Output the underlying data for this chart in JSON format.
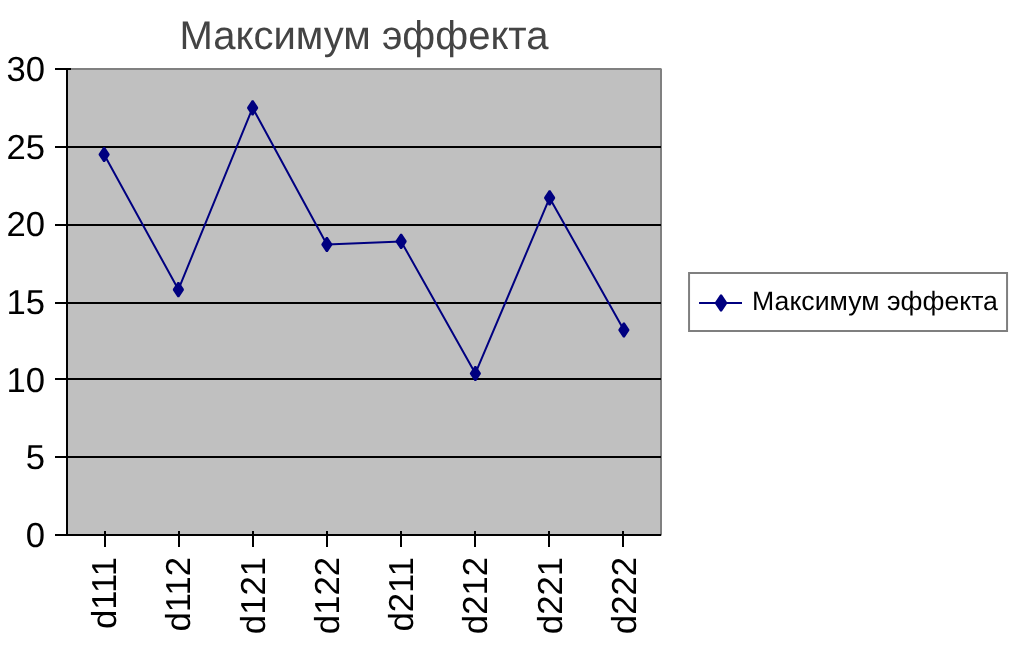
{
  "chart_data": {
    "type": "line",
    "title": "Максимум эффекта",
    "categories": [
      "d111",
      "d112",
      "d121",
      "d122",
      "d211",
      "d212",
      "d221",
      "d222"
    ],
    "series": [
      {
        "name": "Максимум эффекта",
        "color": "#000080",
        "values": [
          24.5,
          15.8,
          27.5,
          18.7,
          18.9,
          10.4,
          21.7,
          13.2
        ]
      }
    ],
    "ylim": [
      0,
      30
    ],
    "yticks": [
      0,
      5,
      10,
      15,
      20,
      25,
      30
    ],
    "grid": "y",
    "legend": "right",
    "marker": "diamond",
    "line_style": "solid"
  }
}
